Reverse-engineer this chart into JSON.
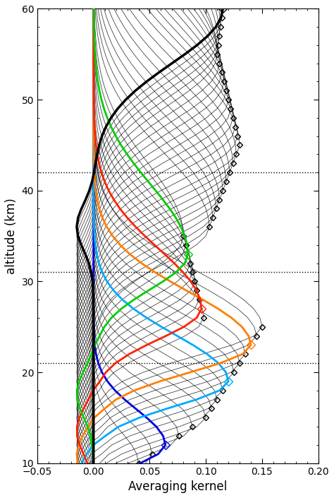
{
  "xlabel": "Averaging kernel",
  "ylabel": "altitude (km)",
  "xlim": [
    -0.05,
    0.2
  ],
  "ylim": [
    10,
    60
  ],
  "xticks": [
    -0.05,
    0.0,
    0.05,
    0.1,
    0.15,
    0.2
  ],
  "yticks": [
    10,
    20,
    30,
    40,
    50,
    60
  ],
  "hlines_dotted": [
    21.0,
    31.0,
    42.0
  ],
  "altitudes": [
    10,
    11,
    12,
    13,
    14,
    15,
    16,
    17,
    18,
    19,
    20,
    21,
    22,
    23,
    24,
    25,
    26,
    27,
    28,
    29,
    30,
    31,
    32,
    33,
    34,
    35,
    36,
    37,
    38,
    39,
    40,
    41,
    42,
    43,
    44,
    45,
    46,
    47,
    48,
    49,
    50,
    51,
    52,
    53,
    54,
    55,
    56,
    57,
    58,
    59,
    60
  ],
  "highlighted": [
    {
      "alt": 12,
      "color": "#0000dd",
      "lw": 2.0
    },
    {
      "alt": 19,
      "color": "#00aaff",
      "lw": 2.0
    },
    {
      "alt": 23,
      "color": "#ff7f00",
      "lw": 2.0
    },
    {
      "alt": 27,
      "color": "#ff2200",
      "lw": 2.0
    },
    {
      "alt": 33,
      "color": "#00cc00",
      "lw": 2.0
    },
    {
      "alt": 60,
      "color": "#000000",
      "lw": 2.5
    }
  ],
  "background_color": "#ffffff"
}
